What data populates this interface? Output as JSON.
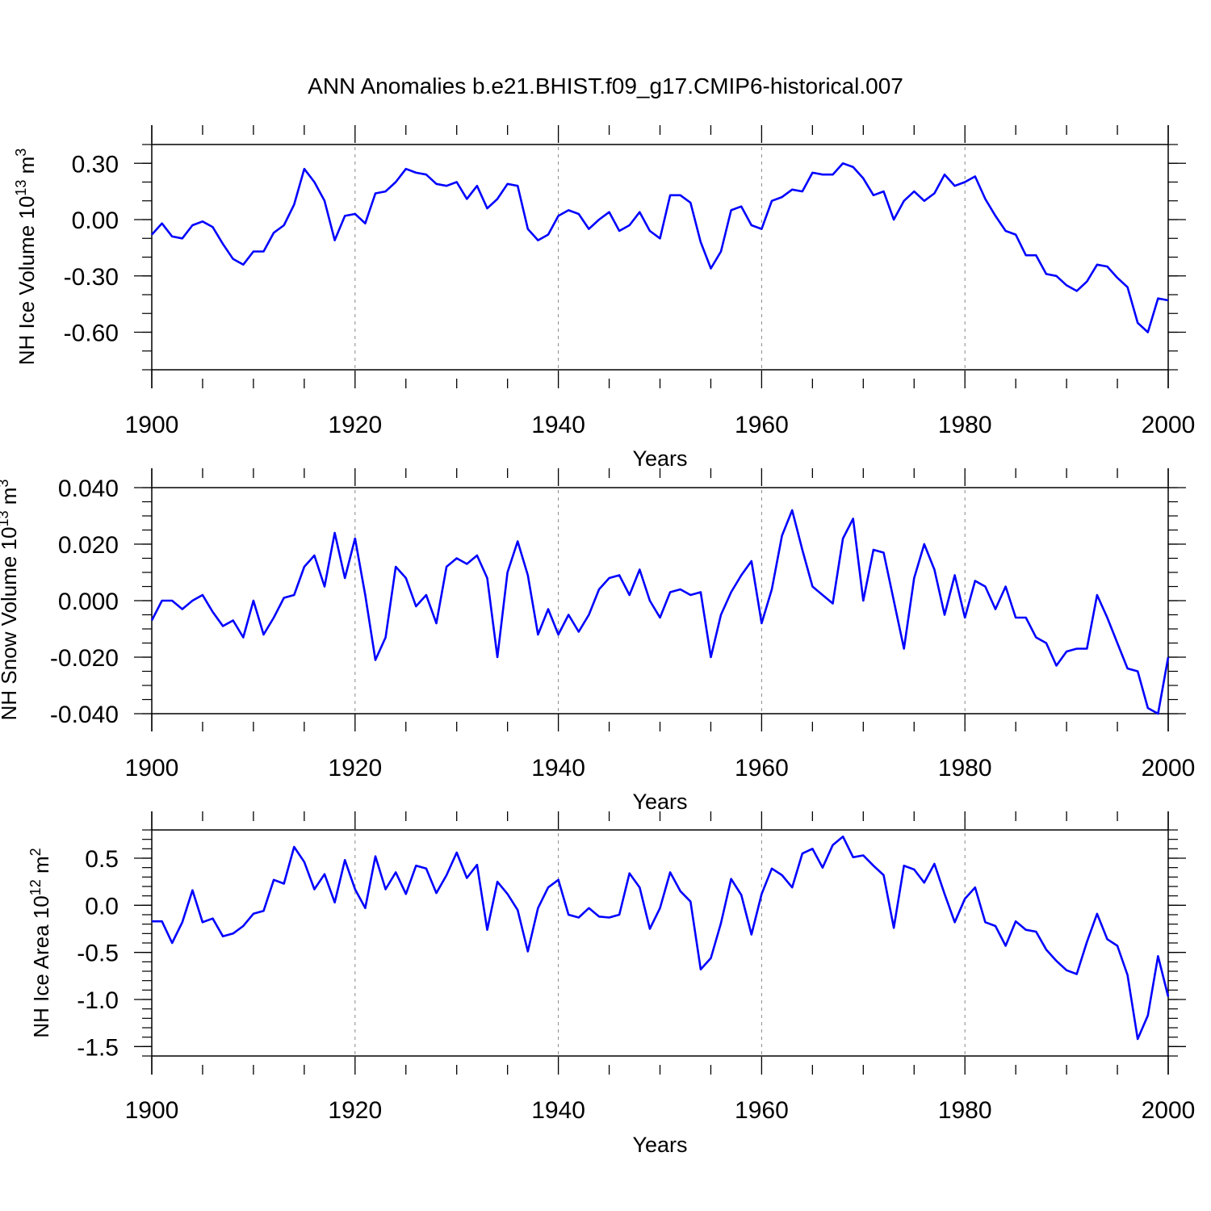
{
  "figure": {
    "title": "ANN Anomalies b.e21.BHIST.f09_g17.CMIP6-historical.007"
  },
  "chart_data": [
    {
      "type": "line",
      "ylabel": {
        "main": "NH Ice Volume 10",
        "sup": "13",
        "unit": " m",
        "unit_sup": "3"
      },
      "xlabel": "Years",
      "xlim": [
        1900,
        2000
      ],
      "ylim": [
        -0.8,
        0.4
      ],
      "xticks": [
        1900,
        1920,
        1940,
        1960,
        1980,
        2000
      ],
      "xtick_labels": [
        "1900",
        "1920",
        "1940",
        "1960",
        "1980",
        "2000"
      ],
      "yticks": [
        -0.6,
        -0.3,
        0.0,
        0.3
      ],
      "ytick_labels": [
        "-0.60",
        "-0.30",
        "0.00",
        "0.30"
      ],
      "yminor_step": 0.1,
      "grid": "dashed vertical lines at major x ticks",
      "series_color": "#0000ff",
      "x_start": 1900,
      "values": [
        -0.08,
        -0.02,
        -0.09,
        -0.1,
        -0.03,
        -0.01,
        -0.04,
        -0.13,
        -0.21,
        -0.24,
        -0.17,
        -0.17,
        -0.07,
        -0.03,
        0.08,
        0.27,
        0.2,
        0.1,
        -0.11,
        0.02,
        0.03,
        -0.02,
        0.14,
        0.15,
        0.2,
        0.27,
        0.25,
        0.24,
        0.19,
        0.18,
        0.2,
        0.11,
        0.18,
        0.06,
        0.11,
        0.19,
        0.18,
        -0.05,
        -0.11,
        -0.08,
        0.02,
        0.05,
        0.03,
        -0.05,
        0.0,
        0.04,
        -0.06,
        -0.03,
        0.04,
        -0.06,
        -0.1,
        0.13,
        0.13,
        0.09,
        -0.12,
        -0.26,
        -0.17,
        0.05,
        0.07,
        -0.03,
        -0.05,
        0.1,
        0.12,
        0.16,
        0.15,
        0.25,
        0.24,
        0.24,
        0.3,
        0.28,
        0.22,
        0.13,
        0.15,
        0.0,
        0.1,
        0.15,
        0.1,
        0.14,
        0.24,
        0.18,
        0.2,
        0.23,
        0.11,
        0.02,
        -0.06,
        -0.08,
        -0.19,
        -0.19,
        -0.29,
        -0.3,
        -0.35,
        -0.38,
        -0.33,
        -0.24,
        -0.25,
        -0.31,
        -0.36,
        -0.55,
        -0.6,
        -0.42,
        -0.43
      ]
    },
    {
      "type": "line",
      "ylabel": {
        "main": "NH Snow Volume 10",
        "sup": "13",
        "unit": " m",
        "unit_sup": "3"
      },
      "xlabel": "Years",
      "xlim": [
        1900,
        2000
      ],
      "ylim": [
        -0.04,
        0.04
      ],
      "xticks": [
        1900,
        1920,
        1940,
        1960,
        1980,
        2000
      ],
      "xtick_labels": [
        "1900",
        "1920",
        "1940",
        "1960",
        "1980",
        "2000"
      ],
      "yticks": [
        -0.04,
        -0.02,
        0.0,
        0.02,
        0.04
      ],
      "ytick_labels": [
        "-0.040",
        "-0.020",
        "0.000",
        "0.020",
        "0.040"
      ],
      "yminor_step": 0.005,
      "grid": "dashed vertical lines at major x ticks",
      "series_color": "#0000ff",
      "x_start": 1900,
      "values": [
        -0.007,
        0.0,
        0.0,
        -0.003,
        0.0,
        0.002,
        -0.004,
        -0.009,
        -0.007,
        -0.013,
        0.0,
        -0.012,
        -0.006,
        0.001,
        0.002,
        0.012,
        0.016,
        0.005,
        0.024,
        0.008,
        0.022,
        0.002,
        -0.021,
        -0.013,
        0.012,
        0.008,
        -0.002,
        0.002,
        -0.008,
        0.012,
        0.015,
        0.013,
        0.016,
        0.008,
        -0.02,
        0.01,
        0.021,
        0.009,
        -0.012,
        -0.003,
        -0.012,
        -0.005,
        -0.011,
        -0.005,
        0.004,
        0.008,
        0.009,
        0.002,
        0.011,
        0.0,
        -0.006,
        0.003,
        0.004,
        0.002,
        0.003,
        -0.02,
        -0.005,
        0.003,
        0.009,
        0.014,
        -0.008,
        0.004,
        0.023,
        0.032,
        0.018,
        0.005,
        0.002,
        -0.001,
        0.022,
        0.029,
        0.0,
        0.018,
        0.017,
        0.0,
        -0.017,
        0.008,
        0.02,
        0.011,
        -0.005,
        0.009,
        -0.006,
        0.007,
        0.005,
        -0.003,
        0.005,
        -0.006,
        -0.006,
        -0.013,
        -0.015,
        -0.023,
        -0.018,
        -0.017,
        -0.017,
        0.002,
        -0.006,
        -0.015,
        -0.024,
        -0.025,
        -0.038,
        -0.04,
        -0.02
      ]
    },
    {
      "type": "line",
      "ylabel": {
        "main": "NH Ice Area 10",
        "sup": "12",
        "unit": " m",
        "unit_sup": "2"
      },
      "xlabel": "Years",
      "xlim": [
        1900,
        2000
      ],
      "ylim": [
        -1.6,
        0.8
      ],
      "xticks": [
        1900,
        1920,
        1940,
        1960,
        1980,
        2000
      ],
      "xtick_labels": [
        "1900",
        "1920",
        "1940",
        "1960",
        "1980",
        "2000"
      ],
      "yticks": [
        -1.5,
        -1.0,
        -0.5,
        0.0,
        0.5
      ],
      "ytick_labels": [
        "-1.5",
        "-1.0",
        "-0.5",
        "0.0",
        "0.5"
      ],
      "yminor_step": 0.1,
      "grid": "dashed vertical lines at major x ticks",
      "series_color": "#0000ff",
      "x_start": 1900,
      "values": [
        -0.17,
        -0.17,
        -0.4,
        -0.18,
        0.16,
        -0.18,
        -0.14,
        -0.33,
        -0.3,
        -0.22,
        -0.09,
        -0.06,
        0.27,
        0.23,
        0.62,
        0.46,
        0.17,
        0.33,
        0.03,
        0.48,
        0.17,
        -0.03,
        0.52,
        0.17,
        0.35,
        0.12,
        0.42,
        0.39,
        0.13,
        0.32,
        0.56,
        0.29,
        0.43,
        -0.26,
        0.25,
        0.12,
        -0.05,
        -0.49,
        -0.03,
        0.19,
        0.27,
        -0.1,
        -0.13,
        -0.03,
        -0.12,
        -0.13,
        -0.1,
        0.34,
        0.19,
        -0.25,
        -0.03,
        0.35,
        0.15,
        0.04,
        -0.68,
        -0.56,
        -0.19,
        0.28,
        0.11,
        -0.31,
        0.12,
        0.39,
        0.32,
        0.19,
        0.55,
        0.6,
        0.4,
        0.64,
        0.73,
        0.51,
        0.53,
        0.42,
        0.32,
        -0.24,
        0.42,
        0.38,
        0.24,
        0.44,
        0.12,
        -0.18,
        0.07,
        0.19,
        -0.18,
        -0.22,
        -0.43,
        -0.17,
        -0.26,
        -0.28,
        -0.47,
        -0.59,
        -0.69,
        -0.73,
        -0.39,
        -0.09,
        -0.36,
        -0.43,
        -0.74,
        -1.42,
        -1.17,
        -0.54,
        -0.97
      ]
    }
  ]
}
